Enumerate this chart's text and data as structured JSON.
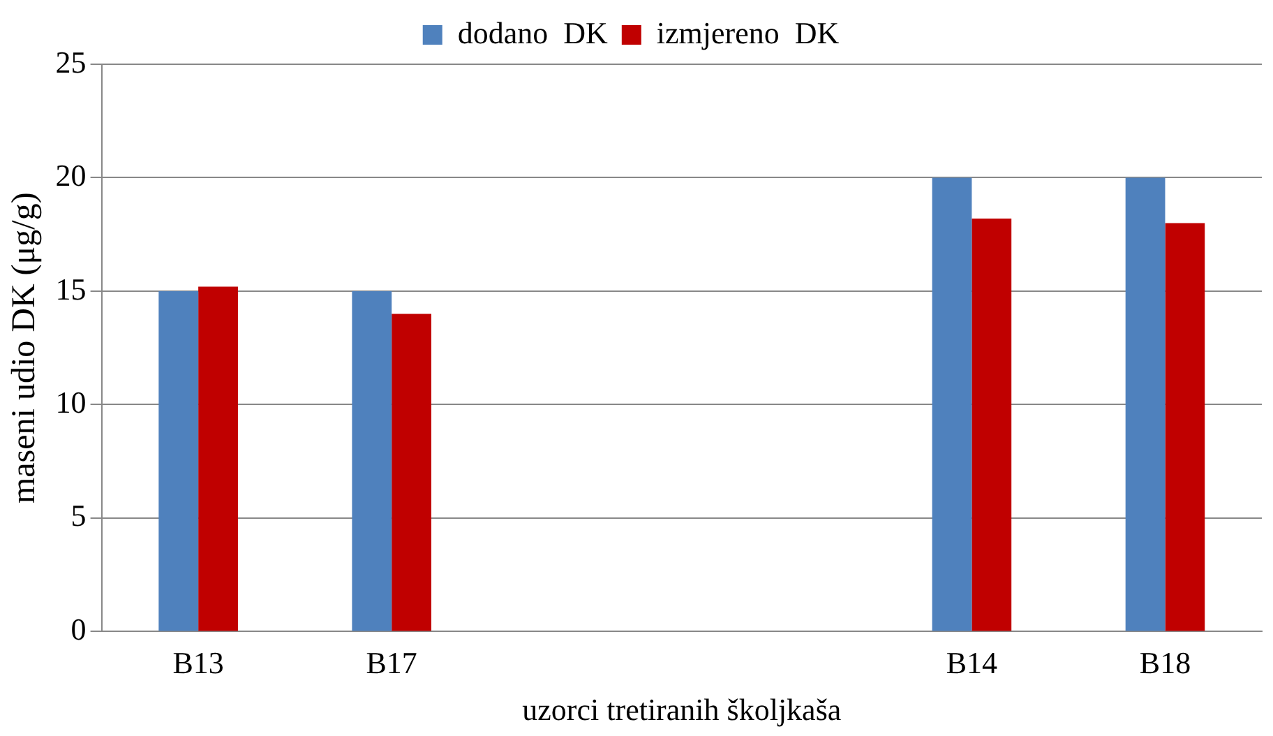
{
  "chart_data": {
    "type": "bar",
    "xlabel": "uzorci tretiranih školjkaša",
    "ylabel": "maseni udio DK (μg/g)",
    "categories": [
      "B13",
      "B17",
      null,
      null,
      "B14",
      "B18"
    ],
    "series": [
      {
        "name": "dodano  DK",
        "color": "#4f81bd",
        "values": [
          15,
          15,
          null,
          null,
          20,
          20
        ]
      },
      {
        "name": "izmjereno  DK",
        "color": "#c00000",
        "values": [
          15.2,
          14,
          null,
          null,
          18.2,
          18
        ]
      }
    ],
    "ylim": [
      0,
      25
    ],
    "yticks": [
      0,
      5,
      10,
      15,
      20,
      25
    ],
    "grid": "y",
    "legend": "top"
  }
}
